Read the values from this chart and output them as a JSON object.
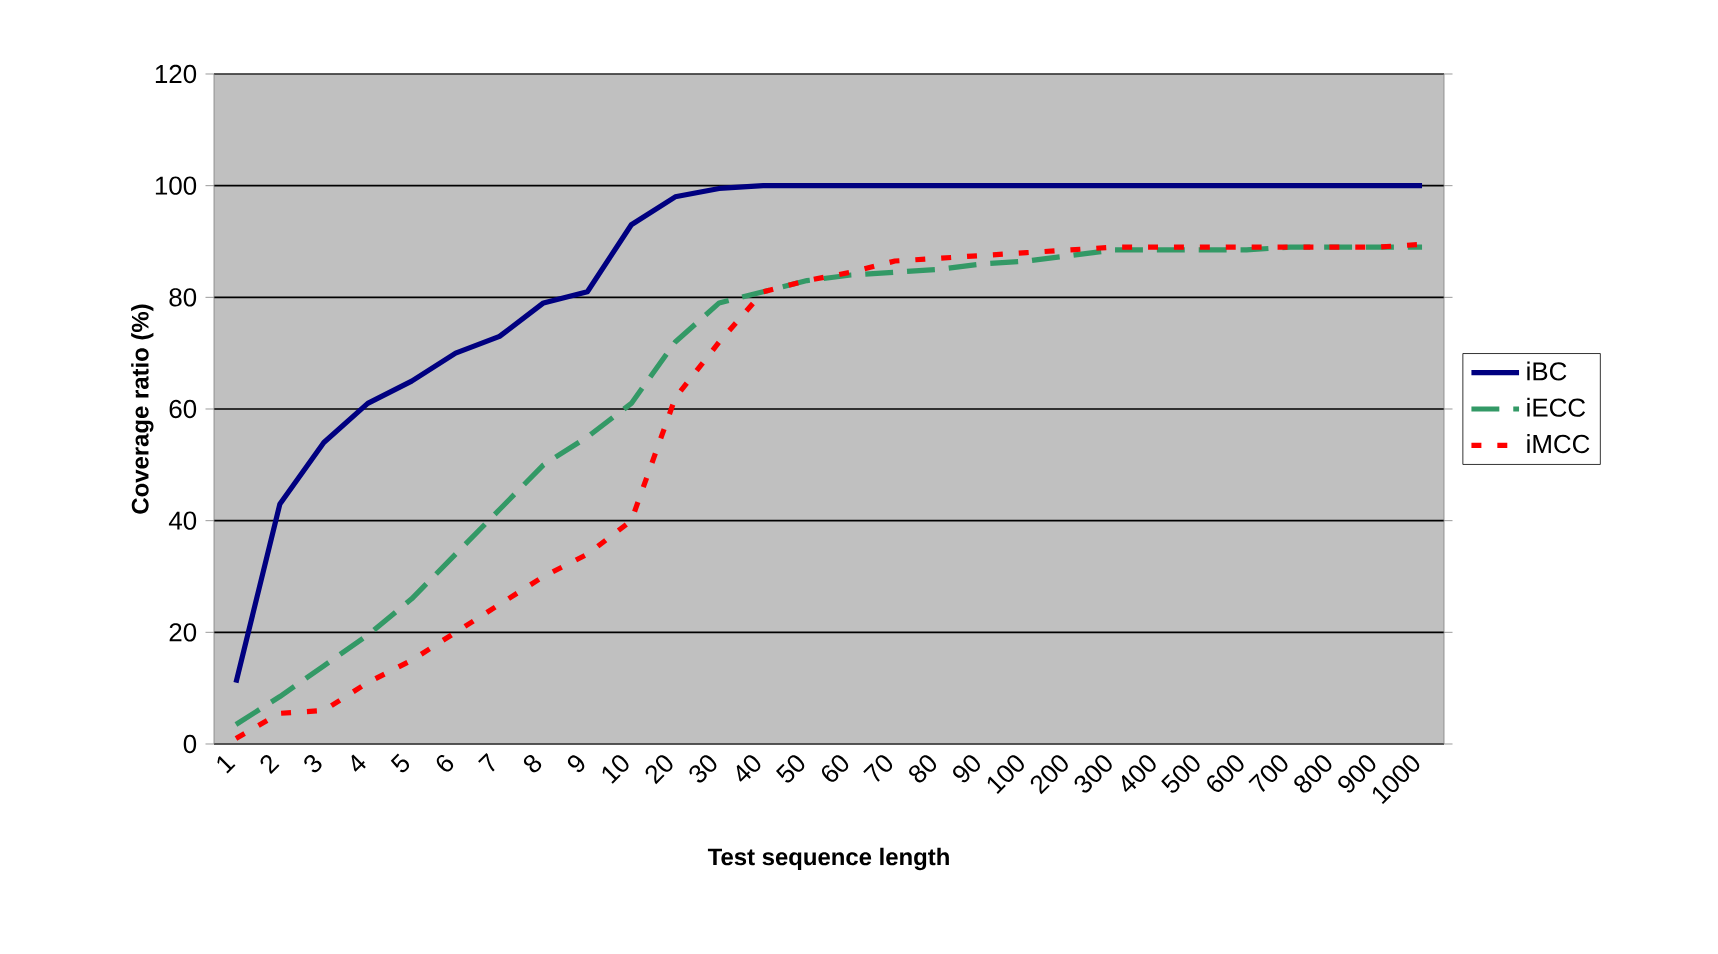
{
  "chart_data": {
    "type": "line",
    "xlabel": "Test sequence length",
    "ylabel": "Coverage ratio (%)",
    "categories": [
      "1",
      "2",
      "3",
      "4",
      "5",
      "6",
      "7",
      "8",
      "9",
      "10",
      "20",
      "30",
      "40",
      "50",
      "60",
      "70",
      "80",
      "90",
      "100",
      "200",
      "300",
      "400",
      "500",
      "600",
      "700",
      "800",
      "900",
      "1000"
    ],
    "series": [
      {
        "name": "iBC",
        "color": "#000080",
        "line_style": "solid",
        "values": [
          11,
          43,
          54,
          61,
          65,
          70,
          73,
          79,
          81,
          93,
          98,
          99.5,
          100,
          100,
          100,
          100,
          100,
          100,
          100,
          100,
          100,
          100,
          100,
          100,
          100,
          100,
          100,
          100
        ]
      },
      {
        "name": "iECC",
        "color": "#339966",
        "line_style": "dashed",
        "values": [
          3.5,
          8.5,
          14,
          19.5,
          26,
          34,
          42,
          50,
          55,
          61,
          72,
          79,
          81,
          83,
          84,
          84.5,
          85,
          86,
          86.5,
          87.5,
          88.5,
          88.5,
          88.5,
          88.5,
          89,
          89,
          89,
          89
        ]
      },
      {
        "name": "iMCC",
        "color": "#ff0000",
        "line_style": "dotted",
        "values": [
          1,
          5.5,
          6,
          11,
          15,
          20,
          25,
          30,
          34,
          40,
          62,
          72,
          81,
          83,
          84.5,
          86.5,
          87,
          87.5,
          88,
          88.5,
          89,
          89,
          89,
          89,
          89,
          89,
          89,
          89.5
        ]
      }
    ],
    "ylim": [
      0,
      120
    ],
    "yticks": [
      0,
      20,
      40,
      60,
      80,
      100,
      120
    ],
    "grid": "y",
    "legend": "right"
  }
}
